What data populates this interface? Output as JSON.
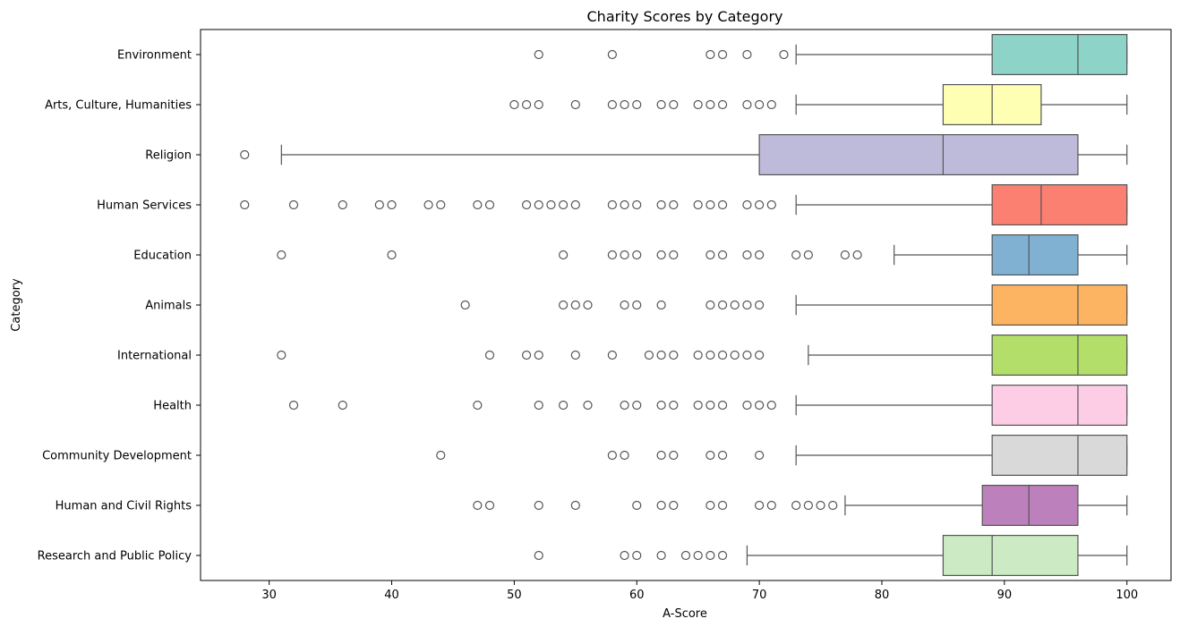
{
  "chart_data": {
    "type": "boxplot",
    "orientation": "horizontal",
    "title": "Charity Scores by Category",
    "xlabel": "A-Score",
    "ylabel": "Category",
    "xlim": [
      24.4,
      103.6
    ],
    "xticks": [
      30,
      40,
      50,
      60,
      70,
      80,
      90,
      100
    ],
    "grid": false,
    "legend": "none",
    "series": [
      {
        "name": "Environment",
        "color": "#8dd3c7",
        "whisker_low": 73,
        "q1": 89,
        "median": 96,
        "q3": 100,
        "whisker_high": 100,
        "outliers": [
          52,
          58,
          66,
          67,
          69,
          72
        ]
      },
      {
        "name": "Arts, Culture, Humanities",
        "color": "#ffffb3",
        "whisker_low": 73,
        "q1": 85,
        "median": 89,
        "q3": 93,
        "whisker_high": 100,
        "outliers": [
          50,
          51,
          52,
          55,
          58,
          59,
          60,
          62,
          63,
          65,
          66,
          67,
          69,
          70,
          71
        ]
      },
      {
        "name": "Religion",
        "color": "#bebada",
        "whisker_low": 31,
        "q1": 70,
        "median": 85,
        "q3": 96,
        "whisker_high": 100,
        "outliers": [
          28
        ]
      },
      {
        "name": "Human Services",
        "color": "#fb8072",
        "whisker_low": 73,
        "q1": 89,
        "median": 93,
        "q3": 100,
        "whisker_high": 100,
        "outliers": [
          28,
          32,
          36,
          39,
          40,
          43,
          44,
          47,
          48,
          51,
          52,
          53,
          54,
          55,
          58,
          59,
          60,
          62,
          63,
          65,
          66,
          67,
          69,
          70,
          71
        ]
      },
      {
        "name": "Education",
        "color": "#80b1d3",
        "whisker_low": 81,
        "q1": 89,
        "median": 92,
        "q3": 96,
        "whisker_high": 100,
        "outliers": [
          31,
          40,
          54,
          58,
          59,
          60,
          62,
          63,
          66,
          67,
          69,
          70,
          73,
          74,
          77,
          78
        ]
      },
      {
        "name": "Animals",
        "color": "#fdb462",
        "whisker_low": 73,
        "q1": 89,
        "median": 96,
        "q3": 100,
        "whisker_high": 100,
        "outliers": [
          46,
          54,
          55,
          56,
          59,
          60,
          62,
          66,
          67,
          68,
          69,
          70
        ]
      },
      {
        "name": "International",
        "color": "#b3de69",
        "whisker_low": 74,
        "q1": 89,
        "median": 96,
        "q3": 100,
        "whisker_high": 100,
        "outliers": [
          31,
          48,
          51,
          52,
          55,
          58,
          61,
          62,
          63,
          65,
          66,
          67,
          68,
          69,
          70
        ]
      },
      {
        "name": "Health",
        "color": "#fccde5",
        "whisker_low": 73,
        "q1": 89,
        "median": 96,
        "q3": 100,
        "whisker_high": 100,
        "outliers": [
          32,
          36,
          47,
          52,
          54,
          56,
          59,
          60,
          62,
          63,
          65,
          66,
          67,
          69,
          70,
          71
        ]
      },
      {
        "name": "Community Development",
        "color": "#d9d9d9",
        "whisker_low": 73,
        "q1": 89,
        "median": 96,
        "q3": 100,
        "whisker_high": 100,
        "outliers": [
          44,
          58,
          59,
          62,
          63,
          66,
          67,
          70
        ]
      },
      {
        "name": "Human and Civil Rights",
        "color": "#bc80bd",
        "whisker_low": 77,
        "q1": 88.2,
        "median": 92,
        "q3": 96,
        "whisker_high": 100,
        "outliers": [
          47,
          48,
          52,
          55,
          60,
          62,
          63,
          66,
          67,
          70,
          71,
          73,
          74,
          75,
          76
        ]
      },
      {
        "name": "Research and Public Policy",
        "color": "#ccebc5",
        "whisker_low": 69,
        "q1": 85,
        "median": 89,
        "q3": 96,
        "whisker_high": 100,
        "outliers": [
          52,
          59,
          60,
          62,
          64,
          65,
          66,
          67
        ]
      }
    ]
  }
}
